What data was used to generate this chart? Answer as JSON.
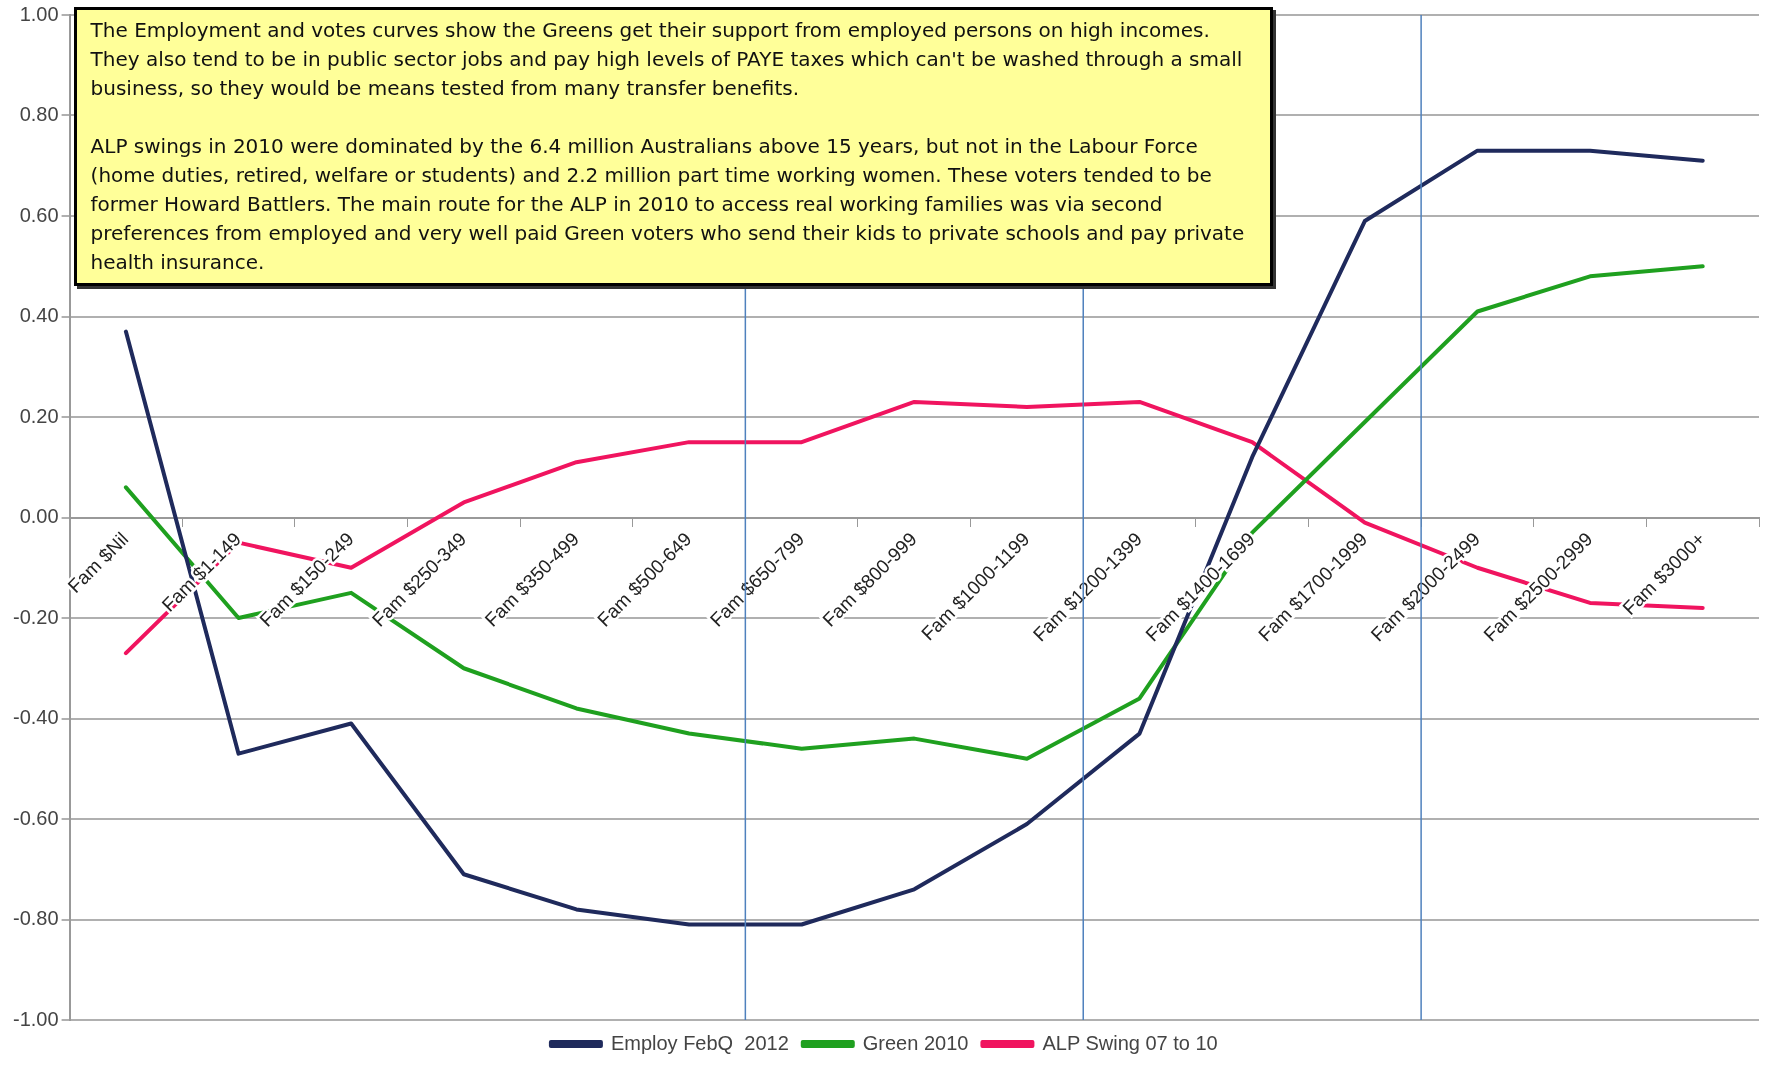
{
  "chart_data": {
    "type": "line",
    "categories": [
      "Fam $Nil",
      "Fam $1-149",
      "Fam $150-249",
      "Fam $250-349",
      "Fam $350-499",
      "Fam $500-649",
      "Fam $650-799",
      "Fam $800-999",
      "Fam $1000-1199",
      "Fam $1200-1399",
      "Fam $1400-1699",
      "Fam $1700-1999",
      "Fam $2000-2499",
      "Fam $2500-2999",
      "Fam $3000+"
    ],
    "series": [
      {
        "name": "Employ FebQ  2012",
        "color": "#1f2a5c",
        "values": [
          0.37,
          -0.47,
          -0.41,
          -0.71,
          -0.78,
          -0.81,
          -0.81,
          -0.74,
          -0.61,
          -0.43,
          0.12,
          0.59,
          0.73,
          0.73,
          0.71
        ]
      },
      {
        "name": "Green 2010",
        "color": "#1fa01f",
        "values": [
          0.06,
          -0.2,
          -0.15,
          -0.3,
          -0.38,
          -0.43,
          -0.46,
          -0.44,
          -0.48,
          -0.36,
          -0.03,
          0.19,
          0.41,
          0.48,
          0.5
        ]
      },
      {
        "name": "ALP Swing 07 to 10",
        "color": "#f0145f",
        "values": [
          -0.27,
          -0.05,
          -0.1,
          0.03,
          0.11,
          0.15,
          0.15,
          0.23,
          0.22,
          0.23,
          0.15,
          -0.01,
          -0.1,
          -0.17,
          -0.18
        ]
      }
    ],
    "ylim": [
      -1,
      1
    ],
    "yticks": [
      {
        "value": -1,
        "label": "-1.00"
      },
      {
        "value": -0.8,
        "label": "-0.80"
      },
      {
        "value": -0.6,
        "label": "-0.60"
      },
      {
        "value": -0.4,
        "label": "-0.40"
      },
      {
        "value": -0.2,
        "label": "-0.20"
      },
      {
        "value": 0,
        "label": "0.00"
      },
      {
        "value": 0.2,
        "label": "0.20"
      },
      {
        "value": 0.4,
        "label": "0.40"
      },
      {
        "value": 0.6,
        "label": "0.60"
      },
      {
        "value": 0.8,
        "label": "0.80"
      },
      {
        "value": 1,
        "label": "1.00"
      }
    ],
    "annotations": [
      "The Employment and votes curves show the Greens get their support from employed persons on high incomes. They also tend to be in public sector jobs and pay high levels of PAYE taxes which can't be washed through a small business, so they would be means tested from many transfer benefits.\n\nALP swings in 2010 were dominated by the 6.4 million Australians above 15 years, but not in the Labour Force (home duties, retired, welfare or students) and 2.2 million part time working women. These voters tended to be former Howard Battlers.  The main route for the ALP in 2010 to access  real working families was via second preferences from employed and very well paid Green voters who send their kids to private schools and pay private health insurance."
    ],
    "grid": "y",
    "legend": "bottom",
    "marker": "none",
    "line_style": "solid"
  }
}
